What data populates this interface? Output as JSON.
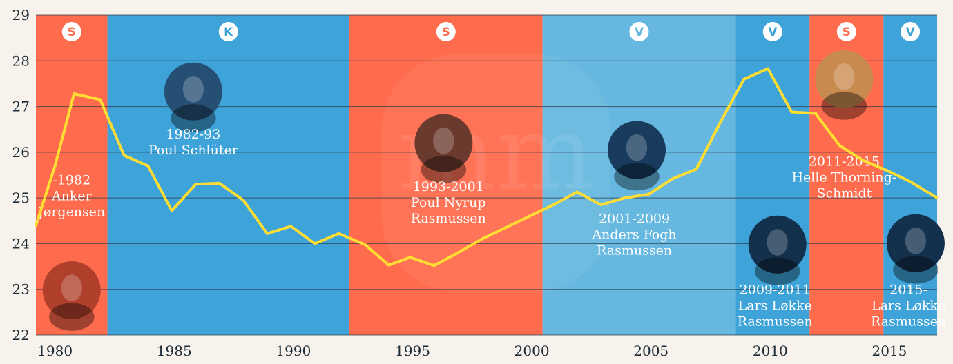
{
  "colors": {
    "S": "#ff6b4d",
    "K": "#3ea3d9",
    "V_light": "#67b8e0",
    "V": "#3ea3d9",
    "line": "#ffdd33",
    "grid": "#2b3a46",
    "axis_text": "#1c2b36",
    "background": "#f7f3ec"
  },
  "chart_data": {
    "type": "line",
    "xlim": [
      1979.2,
      2017
    ],
    "ylim": [
      22,
      29
    ],
    "y_ticks": [
      "22",
      "23",
      "24",
      "25",
      "26",
      "27",
      "28",
      "29"
    ],
    "x_ticks": [
      {
        "value": 1980,
        "label": "1980"
      },
      {
        "value": 1985,
        "label": "1985"
      },
      {
        "value": 1990,
        "label": "1990"
      },
      {
        "value": 1995,
        "label": "1995"
      },
      {
        "value": 2000,
        "label": "2000"
      },
      {
        "value": 2005,
        "label": "2005"
      },
      {
        "value": 2010,
        "label": "2010"
      },
      {
        "value": 2015,
        "label": "2015"
      }
    ],
    "grid": true,
    "series": [
      {
        "x": [
          1979.2,
          1980,
          1980.8,
          1981.9,
          1982.9,
          1983.9,
          1984.9,
          1985.9,
          1986.9,
          1987.9,
          1988.9,
          1989.9,
          1990.9,
          1991.9,
          1993.0,
          1994.0,
          1994.9,
          1995.9,
          1996.9,
          1997.9,
          1998.9,
          1999.9,
          2000.9,
          2001.9,
          2002.9,
          2003.9,
          2004.9,
          2005.9,
          2006.9,
          2007.9,
          2008.9,
          2009.9,
          2010.9,
          2011.9,
          2012.9,
          2013.9,
          2014.9,
          2015.9,
          2017.0
        ],
        "y": [
          24.4,
          25.7,
          27.28,
          27.15,
          25.93,
          25.7,
          24.72,
          25.3,
          25.32,
          24.95,
          24.22,
          24.38,
          24.0,
          24.22,
          23.98,
          23.53,
          23.7,
          23.52,
          23.8,
          24.1,
          24.35,
          24.6,
          24.85,
          25.13,
          24.85,
          25.0,
          25.08,
          25.42,
          25.63,
          26.65,
          27.6,
          27.83,
          26.88,
          26.85,
          26.15,
          25.82,
          25.6,
          25.35,
          25.0
        ]
      }
    ],
    "periods": [
      {
        "start": 1979.2,
        "end": 1982.2,
        "party": "S",
        "color": "#ff6b4d"
      },
      {
        "start": 1982.2,
        "end": 1992.35,
        "party": "K",
        "color": "#3ea3d9"
      },
      {
        "start": 1992.35,
        "end": 2000.45,
        "party": "S",
        "color": "#ff6b4d"
      },
      {
        "start": 2000.45,
        "end": 2008.55,
        "party": "V",
        "color": "#67b8e0"
      },
      {
        "start": 2008.55,
        "end": 2011.65,
        "party": "V",
        "color": "#3ea3d9"
      },
      {
        "start": 2011.65,
        "end": 2014.75,
        "party": "S",
        "color": "#ff6b4d"
      },
      {
        "start": 2014.75,
        "end": 2017.0,
        "party": "V",
        "color": "#3ea3d9"
      }
    ],
    "annotations": [
      {
        "lines": [
          "-1982",
          "Anker",
          "Jørgensen"
        ],
        "x": 1980.7,
        "y": 25.3
      },
      {
        "lines": [
          "1982-93",
          "Poul Schlüter"
        ],
        "x": 1985.8,
        "y": 26.3
      },
      {
        "lines": [
          "1993-2001",
          "Poul Nyrup",
          "Rasmussen"
        ],
        "x": 1996.5,
        "y": 25.15
      },
      {
        "lines": [
          "2001-2009",
          "Anders Fogh",
          "Rasmussen"
        ],
        "x": 2004.3,
        "y": 24.45
      },
      {
        "lines": [
          "2009-2011",
          "Lars Løkke",
          "Rasmussen"
        ],
        "x": 2010.2,
        "y": 22.9
      },
      {
        "lines": [
          "2011-2015",
          "Helle Thorning-",
          "Schmidt"
        ],
        "x": 2013.1,
        "y": 25.7
      },
      {
        "lines": [
          "2015-",
          "Lars Løkke",
          "Rasmussen"
        ],
        "x": 2015.8,
        "y": 22.9
      }
    ],
    "portraits": [
      {
        "x": 1980.7,
        "y": 22.98,
        "fill": "#b0402c"
      },
      {
        "x": 1985.8,
        "y": 27.33,
        "fill": "#264f74"
      },
      {
        "x": 1996.3,
        "y": 26.2,
        "fill": "#6b3a2e"
      },
      {
        "x": 2004.4,
        "y": 26.05,
        "fill": "#183b5e"
      },
      {
        "x": 2010.3,
        "y": 23.98,
        "fill": "#13304d"
      },
      {
        "x": 2013.1,
        "y": 27.6,
        "fill": "#c98a4f"
      },
      {
        "x": 2016.1,
        "y": 24.01,
        "fill": "#13304d"
      }
    ],
    "watermark_text": "mm"
  }
}
